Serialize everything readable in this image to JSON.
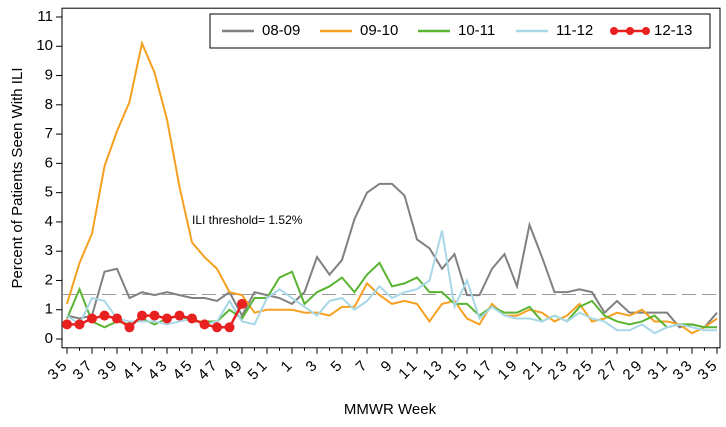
{
  "chart_data": {
    "type": "line",
    "y_label": "Percent of Patients Seen With ILI",
    "x_label": "MMWR Week",
    "annotation": "ILI threshold= 1.52%",
    "threshold": 1.52,
    "categories": [
      "35",
      null,
      "37",
      null,
      "39",
      null,
      "41",
      null,
      "43",
      null,
      "45",
      null,
      "47",
      null,
      "49",
      null,
      "51",
      null,
      "1",
      null,
      "3",
      null,
      "5",
      null,
      "7",
      null,
      "9",
      null,
      "11",
      null,
      "13",
      null,
      "15",
      null,
      "17",
      null,
      "19",
      null,
      "21",
      null,
      "23",
      null,
      "25",
      null,
      "27",
      null,
      "29",
      null,
      "31",
      null,
      "33",
      null,
      "35"
    ],
    "ylim": [
      -0.3,
      11.3
    ],
    "yticks": [
      0,
      1,
      2,
      3,
      4,
      5,
      6,
      7,
      8,
      9,
      10,
      11
    ],
    "legend": "top-right",
    "series": [
      {
        "name": "08-09",
        "color": "#808080",
        "values": [
          0.8,
          0.7,
          0.8,
          2.3,
          2.4,
          1.4,
          1.6,
          1.5,
          1.6,
          1.5,
          1.4,
          1.4,
          1.3,
          1.6,
          0.8,
          1.6,
          1.5,
          1.4,
          1.2,
          1.6,
          2.8,
          2.2,
          2.7,
          4.1,
          5.0,
          5.3,
          5.3,
          4.9,
          3.4,
          3.1,
          2.4,
          2.9,
          1.5,
          1.5,
          2.4,
          2.9,
          1.8,
          3.9,
          2.8,
          1.6,
          1.6,
          1.7,
          1.6,
          0.9,
          1.3,
          0.9,
          0.9,
          0.9,
          0.9,
          0.4,
          0.5,
          0.4,
          0.9
        ]
      },
      {
        "name": "09-10",
        "color": "#f5a020",
        "values": [
          1.2,
          2.6,
          3.6,
          5.9,
          7.1,
          8.1,
          10.1,
          9.1,
          7.5,
          5.2,
          3.3,
          2.8,
          2.4,
          1.6,
          1.5,
          0.9,
          1.0,
          1.0,
          1.0,
          0.9,
          0.9,
          0.8,
          1.1,
          1.1,
          1.9,
          1.5,
          1.2,
          1.3,
          1.2,
          0.6,
          1.2,
          1.3,
          0.7,
          0.5,
          1.2,
          0.8,
          0.8,
          1.0,
          0.9,
          0.6,
          0.8,
          1.2,
          0.6,
          0.7,
          0.9,
          0.8,
          1.0,
          0.6,
          0.6,
          0.5,
          0.2,
          0.4,
          0.7
        ]
      },
      {
        "name": "10-11",
        "color": "#5ab432",
        "values": [
          0.7,
          1.7,
          0.6,
          0.4,
          0.6,
          0.5,
          0.7,
          0.5,
          0.7,
          0.8,
          0.6,
          0.6,
          0.6,
          1.0,
          0.7,
          1.4,
          1.4,
          2.1,
          2.3,
          1.2,
          1.6,
          1.8,
          2.1,
          1.6,
          2.2,
          2.6,
          1.8,
          1.9,
          2.1,
          1.6,
          1.6,
          1.2,
          1.2,
          0.8,
          1.1,
          0.9,
          0.9,
          1.1,
          0.6,
          0.8,
          0.6,
          1.1,
          1.3,
          0.8,
          0.6,
          0.5,
          0.6,
          0.8,
          0.4,
          0.5,
          0.5,
          0.4,
          0.4
        ]
      },
      {
        "name": "11-12",
        "color": "#a8d8e8",
        "values": [
          0.8,
          0.5,
          1.4,
          1.3,
          0.7,
          0.6,
          0.6,
          0.6,
          0.5,
          0.6,
          0.7,
          0.5,
          0.6,
          1.3,
          0.6,
          0.5,
          1.4,
          1.7,
          1.4,
          1.1,
          0.8,
          1.3,
          1.4,
          1.0,
          1.3,
          1.8,
          1.4,
          1.6,
          1.7,
          2.0,
          3.7,
          1.1,
          2.0,
          0.7,
          1.1,
          0.8,
          0.7,
          0.7,
          0.6,
          0.8,
          0.6,
          0.9,
          0.7,
          0.6,
          0.3,
          0.3,
          0.5,
          0.2,
          0.4,
          0.5,
          0.4,
          0.3,
          0.3
        ]
      },
      {
        "name": "12-13",
        "color": "#e82020",
        "markers": true,
        "values": [
          0.5,
          0.5,
          0.7,
          0.8,
          0.7,
          0.4,
          0.8,
          0.8,
          0.7,
          0.8,
          0.7,
          0.5,
          0.4,
          0.4,
          1.2,
          null,
          null,
          null,
          null,
          null,
          null,
          null,
          null,
          null,
          null,
          null,
          null,
          null,
          null,
          null,
          null,
          null,
          null,
          null,
          null,
          null,
          null,
          null,
          null,
          null,
          null,
          null,
          null,
          null,
          null,
          null,
          null,
          null,
          null,
          null,
          null,
          null,
          null
        ]
      }
    ]
  }
}
